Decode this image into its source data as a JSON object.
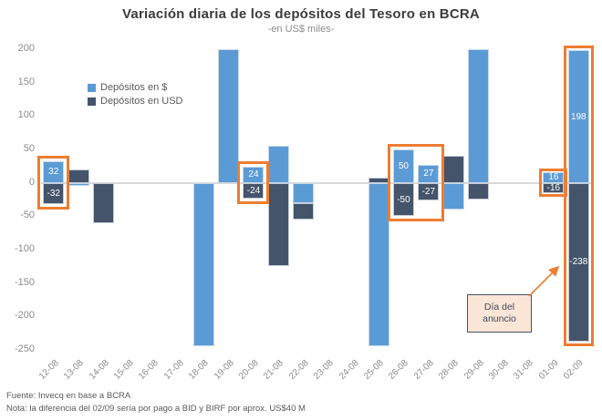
{
  "chart_data": {
    "type": "bar",
    "stacked": true,
    "title": "Variación diaria de los depósitos del Tesoro en BCRA",
    "subtitle": "-en US$ miles-",
    "ylim": [
      -250,
      200
    ],
    "yticks": [
      200,
      150,
      100,
      50,
      0,
      -50,
      -100,
      -150,
      -200,
      -250
    ],
    "grid": false,
    "legend_position": "top-left-inside",
    "zero_line_color": "#D9D9D9",
    "highlight_color": "#ED7D31",
    "categories": [
      "12-08",
      "13-08",
      "14-08",
      "15-08",
      "16-08",
      "17-08",
      "18-08",
      "19-08",
      "20-08",
      "21-08",
      "22-08",
      "23-08",
      "24-08",
      "25-08",
      "26-08",
      "27-08",
      "28-08",
      "29-08",
      "30-08",
      "31-08",
      "01-09",
      "02-09"
    ],
    "series": [
      {
        "name": "Depósitos en $",
        "color": "#5B9BD5",
        "values": [
          32,
          -4,
          0,
          0,
          0,
          0,
          -245,
          200,
          24,
          55,
          -30,
          0,
          0,
          -245,
          50,
          27,
          -40,
          200,
          0,
          0,
          16,
          198
        ],
        "labels": [
          "32",
          null,
          null,
          null,
          null,
          null,
          null,
          null,
          "24",
          null,
          null,
          null,
          null,
          null,
          "50",
          "27",
          null,
          null,
          null,
          null,
          "16",
          "198"
        ]
      },
      {
        "name": "Depósitos en USD",
        "color": "#44546A",
        "values": [
          -32,
          20,
          -60,
          0,
          0,
          0,
          0,
          0,
          -24,
          -125,
          -25,
          0,
          0,
          8,
          -50,
          -27,
          40,
          -25,
          0,
          0,
          -16,
          -238
        ],
        "labels": [
          "-32",
          null,
          null,
          null,
          null,
          null,
          null,
          null,
          "-24",
          null,
          null,
          null,
          null,
          null,
          "-50",
          "-27",
          null,
          null,
          null,
          null,
          "-16",
          "-238"
        ]
      }
    ],
    "highlights": [
      {
        "from": 0,
        "to": 0,
        "pad": 6
      },
      {
        "from": 8,
        "to": 8,
        "pad": 6
      },
      {
        "from": 14,
        "to": 15,
        "pad": 6
      },
      {
        "from": 20,
        "to": 20,
        "pad": 4
      },
      {
        "from": 21,
        "to": 21,
        "pad": 5
      }
    ]
  },
  "annotation": {
    "text": "Día del anuncio",
    "fill": "#FBE5D6",
    "border": "#44546A",
    "arrow_color": "#ED7D31"
  },
  "footer": {
    "source": "Fuente: Invecq en base a BCRA",
    "note": "Nota: la diferencia del 02/09 sería por pago a BID y BIRF por aprox. US$40 M"
  }
}
